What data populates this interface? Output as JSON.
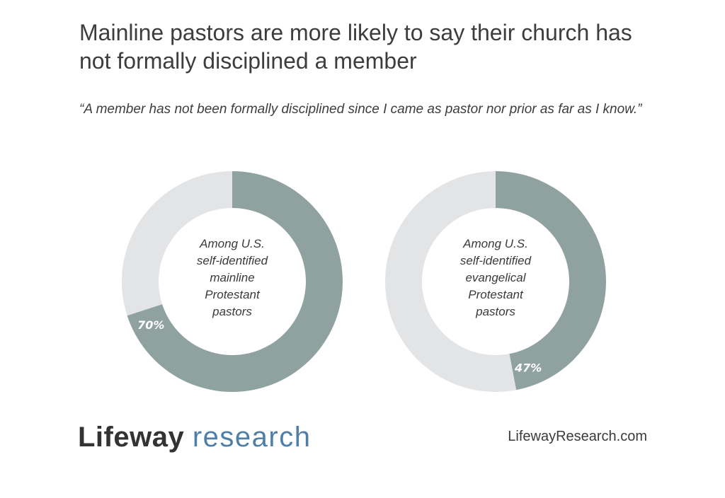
{
  "title": "Mainline pastors are more likely to say their church has not formally disciplined a member",
  "subtitle": "“A member has not been formally disciplined since I came as pastor nor prior as far as I know.”",
  "colors": {
    "filled": "#8fa29f",
    "empty": "#e3e4e6",
    "label": "#ffffff",
    "brand_blue": "#4f7fa7"
  },
  "chart_data": [
    {
      "type": "pie",
      "variant": "donut",
      "center_label": "Among U.S.\nself-identified\nmainline\nProtestant\npastors",
      "value": 70,
      "value_label": "70%",
      "max": 100
    },
    {
      "type": "pie",
      "variant": "donut",
      "center_label": "Among U.S.\nself-identified\nevangelical\nProtestant\npastors",
      "value": 47,
      "value_label": "47%",
      "max": 100
    }
  ],
  "footer": {
    "logo_brand": "Lifeway",
    "logo_sub": "research",
    "website": "LifewayResearch.com"
  }
}
